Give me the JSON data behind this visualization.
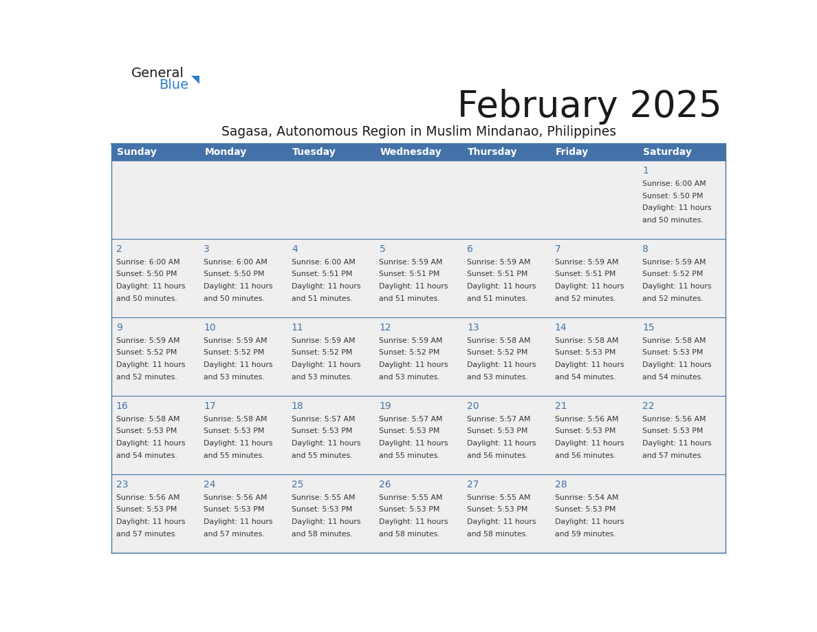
{
  "title": "February 2025",
  "subtitle": "Sagasa, Autonomous Region in Muslim Mindanao, Philippines",
  "days_of_week": [
    "Sunday",
    "Monday",
    "Tuesday",
    "Wednesday",
    "Thursday",
    "Friday",
    "Saturday"
  ],
  "header_bg": "#4472a8",
  "header_text": "#ffffff",
  "row_bg": "#efefef",
  "day_num_color": "#4472a8",
  "info_text_color": "#333333",
  "border_color": "#4472a8",
  "logo_text_color": "#1a1a1a",
  "logo_blue_color": "#2e7ec4",
  "calendar_data": [
    [
      null,
      null,
      null,
      null,
      null,
      null,
      {
        "day": 1,
        "sunrise": "6:00 AM",
        "sunset": "5:50 PM",
        "daylight": "11 hours and 50 minutes."
      }
    ],
    [
      {
        "day": 2,
        "sunrise": "6:00 AM",
        "sunset": "5:50 PM",
        "daylight": "11 hours and 50 minutes."
      },
      {
        "day": 3,
        "sunrise": "6:00 AM",
        "sunset": "5:50 PM",
        "daylight": "11 hours and 50 minutes."
      },
      {
        "day": 4,
        "sunrise": "6:00 AM",
        "sunset": "5:51 PM",
        "daylight": "11 hours and 51 minutes."
      },
      {
        "day": 5,
        "sunrise": "5:59 AM",
        "sunset": "5:51 PM",
        "daylight": "11 hours and 51 minutes."
      },
      {
        "day": 6,
        "sunrise": "5:59 AM",
        "sunset": "5:51 PM",
        "daylight": "11 hours and 51 minutes."
      },
      {
        "day": 7,
        "sunrise": "5:59 AM",
        "sunset": "5:51 PM",
        "daylight": "11 hours and 52 minutes."
      },
      {
        "day": 8,
        "sunrise": "5:59 AM",
        "sunset": "5:52 PM",
        "daylight": "11 hours and 52 minutes."
      }
    ],
    [
      {
        "day": 9,
        "sunrise": "5:59 AM",
        "sunset": "5:52 PM",
        "daylight": "11 hours and 52 minutes."
      },
      {
        "day": 10,
        "sunrise": "5:59 AM",
        "sunset": "5:52 PM",
        "daylight": "11 hours and 53 minutes."
      },
      {
        "day": 11,
        "sunrise": "5:59 AM",
        "sunset": "5:52 PM",
        "daylight": "11 hours and 53 minutes."
      },
      {
        "day": 12,
        "sunrise": "5:59 AM",
        "sunset": "5:52 PM",
        "daylight": "11 hours and 53 minutes."
      },
      {
        "day": 13,
        "sunrise": "5:58 AM",
        "sunset": "5:52 PM",
        "daylight": "11 hours and 53 minutes."
      },
      {
        "day": 14,
        "sunrise": "5:58 AM",
        "sunset": "5:53 PM",
        "daylight": "11 hours and 54 minutes."
      },
      {
        "day": 15,
        "sunrise": "5:58 AM",
        "sunset": "5:53 PM",
        "daylight": "11 hours and 54 minutes."
      }
    ],
    [
      {
        "day": 16,
        "sunrise": "5:58 AM",
        "sunset": "5:53 PM",
        "daylight": "11 hours and 54 minutes."
      },
      {
        "day": 17,
        "sunrise": "5:58 AM",
        "sunset": "5:53 PM",
        "daylight": "11 hours and 55 minutes."
      },
      {
        "day": 18,
        "sunrise": "5:57 AM",
        "sunset": "5:53 PM",
        "daylight": "11 hours and 55 minutes."
      },
      {
        "day": 19,
        "sunrise": "5:57 AM",
        "sunset": "5:53 PM",
        "daylight": "11 hours and 55 minutes."
      },
      {
        "day": 20,
        "sunrise": "5:57 AM",
        "sunset": "5:53 PM",
        "daylight": "11 hours and 56 minutes."
      },
      {
        "day": 21,
        "sunrise": "5:56 AM",
        "sunset": "5:53 PM",
        "daylight": "11 hours and 56 minutes."
      },
      {
        "day": 22,
        "sunrise": "5:56 AM",
        "sunset": "5:53 PM",
        "daylight": "11 hours and 57 minutes."
      }
    ],
    [
      {
        "day": 23,
        "sunrise": "5:56 AM",
        "sunset": "5:53 PM",
        "daylight": "11 hours and 57 minutes."
      },
      {
        "day": 24,
        "sunrise": "5:56 AM",
        "sunset": "5:53 PM",
        "daylight": "11 hours and 57 minutes."
      },
      {
        "day": 25,
        "sunrise": "5:55 AM",
        "sunset": "5:53 PM",
        "daylight": "11 hours and 58 minutes."
      },
      {
        "day": 26,
        "sunrise": "5:55 AM",
        "sunset": "5:53 PM",
        "daylight": "11 hours and 58 minutes."
      },
      {
        "day": 27,
        "sunrise": "5:55 AM",
        "sunset": "5:53 PM",
        "daylight": "11 hours and 58 minutes."
      },
      {
        "day": 28,
        "sunrise": "5:54 AM",
        "sunset": "5:53 PM",
        "daylight": "11 hours and 59 minutes."
      },
      null
    ]
  ]
}
